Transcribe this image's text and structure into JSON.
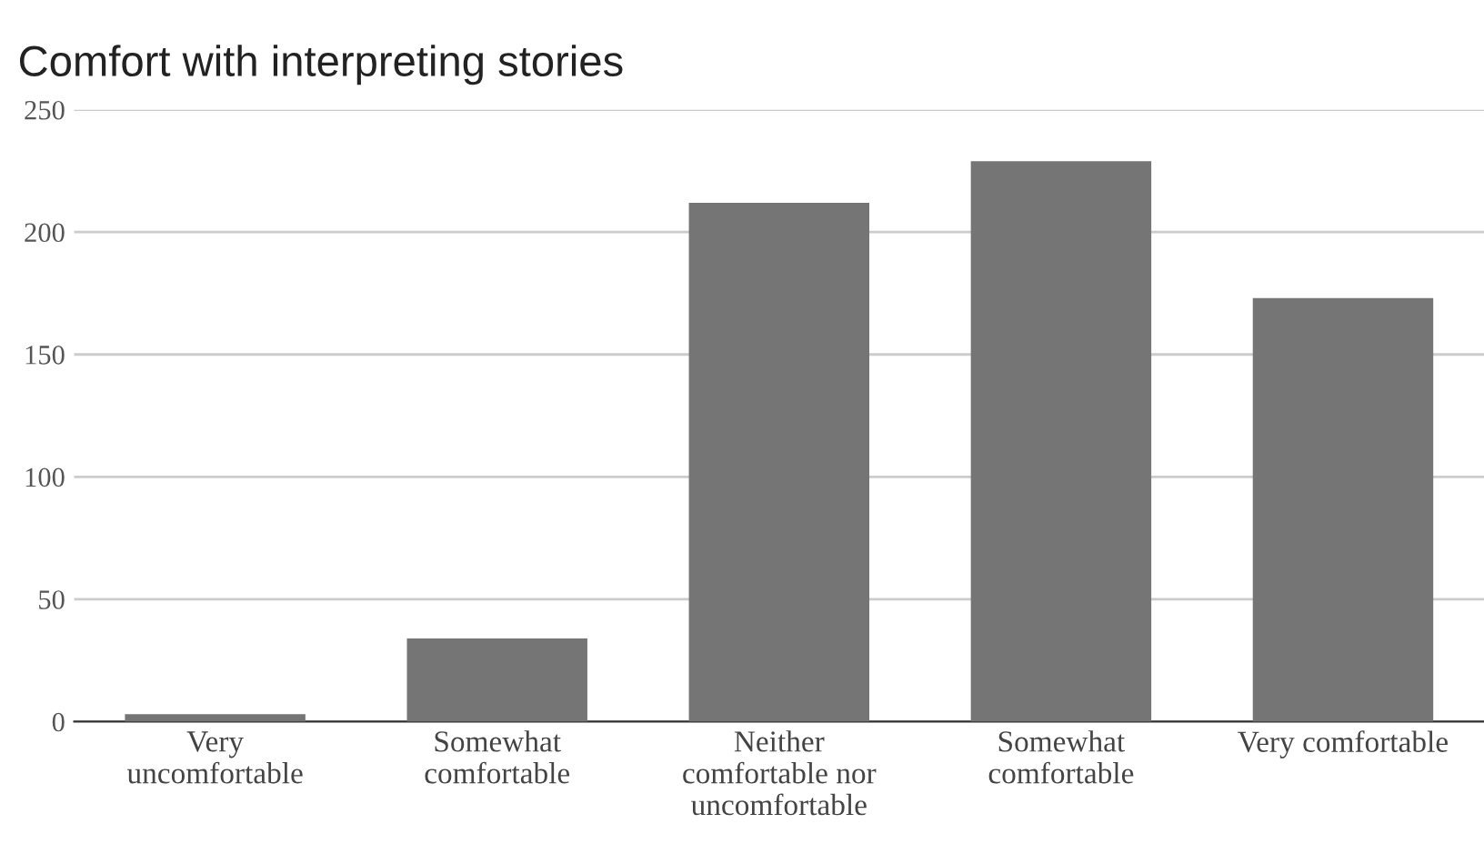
{
  "chart_data": {
    "type": "bar",
    "title": "Comfort with interpreting stories",
    "categories": [
      "Very\nuncomfortable",
      "Somewhat\ncomfortable",
      "Neither\ncomfortable nor\nuncomfortable",
      "Somewhat\ncomfortable",
      "Very comfortable"
    ],
    "values": [
      3,
      34,
      212,
      229,
      173
    ],
    "color": "#757575",
    "ylim": [
      0,
      250
    ],
    "yticks": [
      0,
      50,
      100,
      150,
      200,
      250
    ],
    "grid": "y"
  }
}
